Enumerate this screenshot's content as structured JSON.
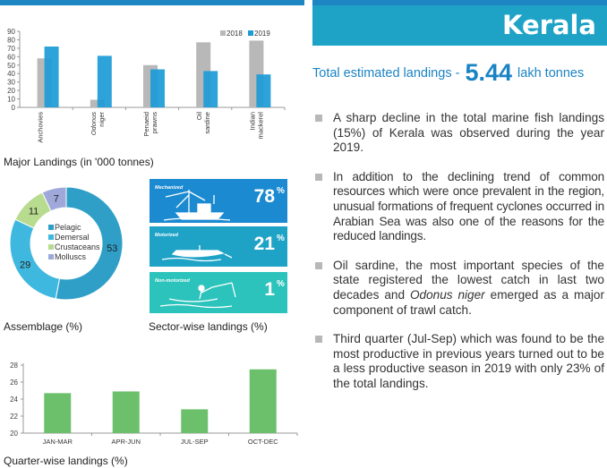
{
  "state": "Kerala",
  "total": {
    "prefix": "Total estimated landings - ",
    "value": "5.44",
    "unit": "lakh tonnes"
  },
  "bullets": [
    {
      "text": "A sharp decline in the total marine fish landings (15%) of Kerala was observed during the year 2019."
    },
    {
      "text": "In addition to the declining trend of common resources which were once prevalent in the region, unusual formations of frequent cyclones occurred in Arabian Sea was also one of the reasons for the reduced landings."
    },
    {
      "before": "Oil sardine, the most important species of the state registered the lowest catch in last two decades and ",
      "italic": "Odonus niger",
      "after": " emerged as a major component of trawl catch."
    },
    {
      "text": "Third quarter (Jul-Sep) which was found to be the most productive in previous years turned out to be a less productive season in 2019 with only 23% of the total landings."
    }
  ],
  "captions": {
    "major": "Major Landings (in '000 tonnes)",
    "assemblage": "Assemblage (%)",
    "sector": "Sector-wise landings (%)",
    "quarter": "Quarter-wise landings (%)"
  },
  "colors": {
    "accent": "#1ea3c7",
    "blue": "#1a83c4",
    "gray": "#b8b8b8",
    "green": "#6cc06c"
  },
  "chart_data": [
    {
      "type": "bar",
      "categories": [
        [
          "Anchovies"
        ],
        [
          "Odonus",
          "niger"
        ],
        [
          "Penaeid",
          "prawns"
        ],
        [
          "Oil",
          "sardine"
        ],
        [
          "Indian",
          "mackerel"
        ]
      ],
      "series": [
        {
          "name": "2018",
          "color": "#b8b8b8",
          "values": [
            58,
            9,
            50,
            77,
            79
          ]
        },
        {
          "name": "2019",
          "color": "#1c9bd6",
          "values": [
            72,
            61,
            45,
            43,
            39
          ]
        }
      ],
      "ylim": [
        0,
        90
      ],
      "yticks": [
        0,
        10,
        20,
        30,
        40,
        50,
        60,
        70,
        80,
        90
      ],
      "legend": "top-right"
    },
    {
      "type": "pie",
      "donut": true,
      "labels": [
        "Pelagic",
        "Demersal",
        "Crustaceans",
        "Molluscs"
      ],
      "values": [
        53,
        29,
        11,
        7
      ],
      "colors": [
        "#2f9fc8",
        "#3fb8df",
        "#b8dc8f",
        "#9ea9da"
      ]
    },
    {
      "type": "table",
      "rows": [
        {
          "label": "Mechanized",
          "value": "78",
          "unit": "%",
          "color": "#1b8ad0"
        },
        {
          "label": "Motorized",
          "value": "21",
          "unit": "%",
          "color": "#1ea3c7"
        },
        {
          "label": "Non-motorized",
          "value": "1",
          "unit": "%",
          "color": "#2bc3bb"
        }
      ]
    },
    {
      "type": "bar",
      "categories": [
        "JAN-MAR",
        "APR-JUN",
        "JUL-SEP",
        "OCT-DEC"
      ],
      "values": [
        24.7,
        24.9,
        22.8,
        27.5
      ],
      "ylim": [
        20,
        28
      ],
      "yticks": [
        20,
        22,
        24,
        26,
        28
      ],
      "color": "#6cc06c"
    }
  ]
}
